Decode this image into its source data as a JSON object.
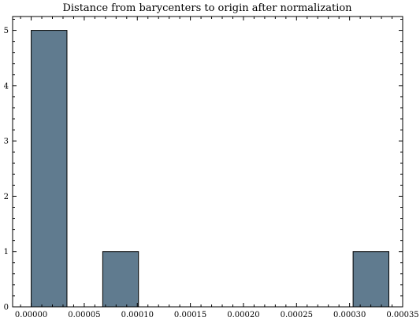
{
  "chart_data": {
    "type": "bar",
    "title": "Distance from barycenters to origin after normalization",
    "xlabel": "",
    "ylabel": "",
    "x_range": [
      -1.75e-05,
      0.00035
    ],
    "y_range": [
      0,
      5.25
    ],
    "x_ticks": [
      "0.00000",
      "0.00005",
      "0.00010",
      "0.00015",
      "0.00020",
      "0.00025",
      "0.00030",
      "0.00035"
    ],
    "x_tick_values": [
      0,
      5e-05,
      0.0001,
      0.00015,
      0.0002,
      0.00025,
      0.0003,
      0.00035
    ],
    "y_ticks": [
      "0",
      "1",
      "2",
      "3",
      "4",
      "5"
    ],
    "y_tick_values": [
      0,
      1,
      2,
      3,
      4,
      5
    ],
    "bins": [
      {
        "x0": 0.0,
        "x1": 3.37e-05,
        "count": 5
      },
      {
        "x0": 3.37e-05,
        "x1": 6.74e-05,
        "count": 0
      },
      {
        "x0": 6.74e-05,
        "x1": 0.0001011,
        "count": 1
      },
      {
        "x0": 0.0001011,
        "x1": 0.0001348,
        "count": 0
      },
      {
        "x0": 0.0001348,
        "x1": 0.0001685,
        "count": 0
      },
      {
        "x0": 0.0001685,
        "x1": 0.0002022,
        "count": 0
      },
      {
        "x0": 0.0002022,
        "x1": 0.0002359,
        "count": 0
      },
      {
        "x0": 0.0002359,
        "x1": 0.0002696,
        "count": 0
      },
      {
        "x0": 0.0002696,
        "x1": 0.0003033,
        "count": 0
      },
      {
        "x0": 0.0003033,
        "x1": 0.000337,
        "count": 1
      }
    ],
    "bar_color": "#607b8f",
    "grid": false
  }
}
